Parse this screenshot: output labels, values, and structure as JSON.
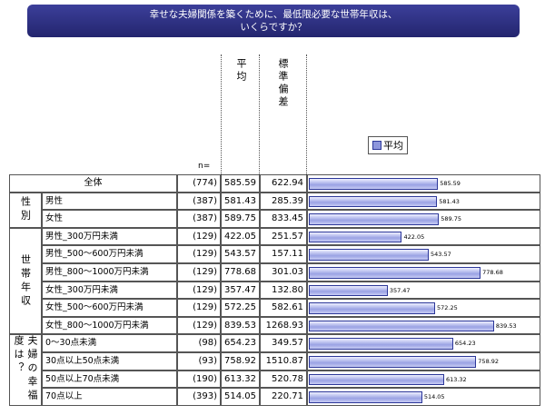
{
  "chart_data": {
    "type": "bar",
    "title": [
      "幸せな夫婦関係を築くために、最低限必要な世帯年収は、",
      "いくらですか？"
    ],
    "n_header": "n=",
    "columns": [
      "平均",
      "標準偏差"
    ],
    "series": [
      {
        "name": "平均",
        "color": "#8d96dc"
      }
    ],
    "xlim": [
      0,
      1050
    ],
    "groups": [
      {
        "rows": [
          {
            "label": "全体",
            "n": {
              "value": 774,
              "label": "(774)"
            },
            "mean": 585.59,
            "std": 622.94
          }
        ]
      },
      {
        "label": "性別",
        "rows": [
          {
            "label": "男性",
            "n": {
              "value": 387,
              "label": "(387)"
            },
            "mean": 581.43,
            "std": 285.39
          },
          {
            "label": "女性",
            "n": {
              "value": 387,
              "label": "(387)"
            },
            "mean": 589.75,
            "std": 833.45
          }
        ]
      },
      {
        "label": "世帯年収",
        "rows": [
          {
            "label": "男性_300万円未満",
            "n": {
              "value": 129,
              "label": "(129)"
            },
            "mean": 422.05,
            "std": 251.57
          },
          {
            "label": "男性_500～600万円未満",
            "n": {
              "value": 129,
              "label": "(129)"
            },
            "mean": 543.57,
            "std": 157.11
          },
          {
            "label": "男性_800～1000万円未満",
            "n": {
              "value": 129,
              "label": "(129)"
            },
            "mean": 778.68,
            "std": 301.03
          },
          {
            "label": "女性_300万円未満",
            "n": {
              "value": 129,
              "label": "(129)"
            },
            "mean": 357.47,
            "std": {
              "value": 132.8,
              "label": "132.80"
            }
          },
          {
            "label": "女性_500～600万円未満",
            "n": {
              "value": 129,
              "label": "(129)"
            },
            "mean": 572.25,
            "std": 582.61
          },
          {
            "label": "女性_800～1000万円未満",
            "n": {
              "value": 129,
              "label": "(129)"
            },
            "mean": 839.53,
            "std": 1268.93
          }
        ]
      },
      {
        "label": "夫婦の幸福度は？",
        "rows": [
          {
            "label": "0～30点未満",
            "n": {
              "value": 98,
              "label": "(98)"
            },
            "mean": 654.23,
            "std": 349.57
          },
          {
            "label": "30点以上50点未満",
            "n": {
              "value": 93,
              "label": "(93)"
            },
            "mean": 758.92,
            "std": 1510.87
          },
          {
            "label": "50点以上70点未満",
            "n": {
              "value": 190,
              "label": "(190)"
            },
            "mean": 613.32,
            "std": 520.78
          },
          {
            "label": "70点以上",
            "n": {
              "value": 393,
              "label": "(393)"
            },
            "mean": 514.05,
            "std": 220.71
          }
        ]
      }
    ]
  }
}
